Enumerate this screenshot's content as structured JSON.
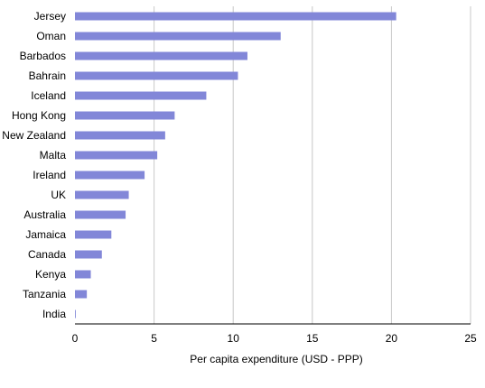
{
  "chart_data": {
    "type": "bar",
    "orientation": "horizontal",
    "categories": [
      "Jersey",
      "Oman",
      "Barbados",
      "Bahrain",
      "Iceland",
      "Hong Kong",
      "New Zealand",
      "Malta",
      "Ireland",
      "UK",
      "Australia",
      "Jamaica",
      "Canada",
      "Kenya",
      "Tanzania",
      "India"
    ],
    "values": [
      20.3,
      13.0,
      10.9,
      10.3,
      8.3,
      6.3,
      5.7,
      5.2,
      4.4,
      3.4,
      3.2,
      2.3,
      1.7,
      1.0,
      0.75,
      0.05
    ],
    "xlabel": "Per capita expenditure (USD - PPP)",
    "xlim": [
      0,
      25
    ],
    "xticks": [
      "0",
      "5",
      "10",
      "15",
      "20",
      "25"
    ],
    "grid": "vertical",
    "legend": "none",
    "bar_color": "#8287d8",
    "grid_color": "#c8c8c8",
    "axis_color": "#000000"
  }
}
